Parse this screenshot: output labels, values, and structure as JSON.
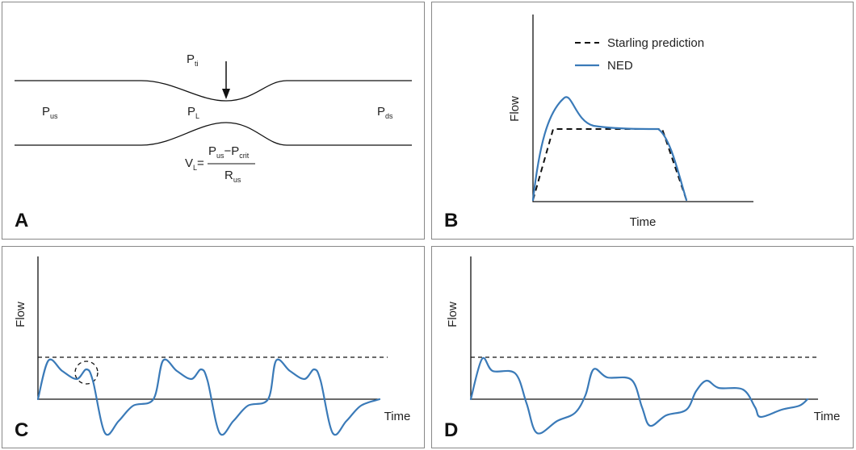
{
  "panels": [
    {
      "letter": "A",
      "labels": [
        {
          "main": "P",
          "sub": "ti"
        },
        {
          "main": "P",
          "sub": "us"
        },
        {
          "main": "P",
          "sub": "L"
        },
        {
          "main": "P",
          "sub": "ds"
        }
      ],
      "formula": {
        "left": {
          "main": "V",
          "sub": "L"
        },
        "equals": "=",
        "numerator": [
          {
            "main": "P",
            "sub": "us"
          },
          {
            "main": "−P",
            "sub": "crit"
          }
        ],
        "denominator": {
          "main": "R",
          "sub": "us"
        }
      }
    },
    {
      "letter": "B",
      "y_label": "Flow",
      "x_label": "Time",
      "legend": [
        "Starling prediction",
        "NED"
      ]
    },
    {
      "letter": "C",
      "y_label": "Flow",
      "x_label": "Time"
    },
    {
      "letter": "D",
      "y_label": "Flow",
      "x_label": "Time"
    }
  ]
}
